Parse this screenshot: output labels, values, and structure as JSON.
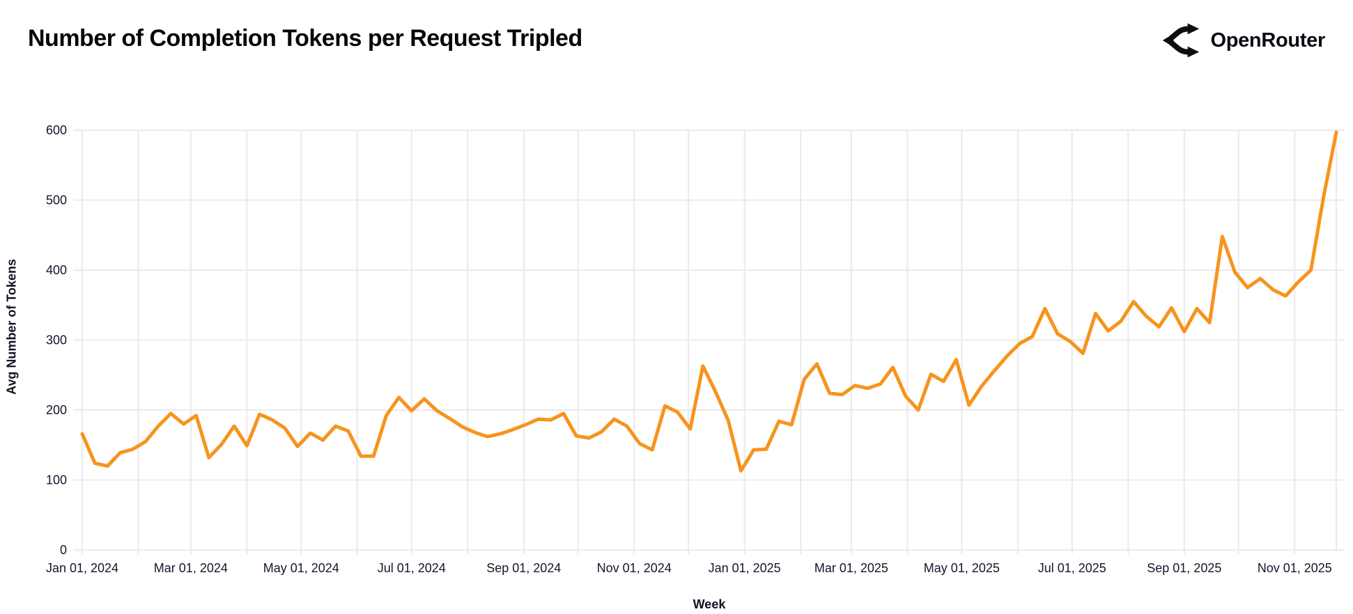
{
  "header": {
    "title": "Number of Completion Tokens per Request Tripled",
    "brand_name": "OpenRouter"
  },
  "icons": {
    "logo": "openrouter-branching-arrows"
  },
  "colors": {
    "line": "#F7941D",
    "grid": "#E9E9F0",
    "tick_text": "#15152B",
    "title_text": "#060608"
  },
  "chart_data": {
    "type": "line",
    "title": "Number of Completion Tokens per Request Tripled",
    "xlabel": "Week",
    "ylabel": "Avg Number of Tokens",
    "ylim": [
      0,
      600
    ],
    "yticks": [
      0,
      100,
      200,
      300,
      400,
      500,
      600
    ],
    "x_tick_labels": [
      "Jan 01, 2024",
      "Mar 01, 2024",
      "May 01, 2024",
      "Jul 01, 2024",
      "Sep 01, 2024",
      "Nov 01, 2024",
      "Jan 01, 2025",
      "Mar 01, 2025",
      "May 01, 2025",
      "Jul 01, 2025",
      "Sep 01, 2025",
      "Nov 01, 2025"
    ],
    "grid": true,
    "legend": "none",
    "line_color": "#F7941D",
    "series": [
      {
        "name": "Avg Number of Tokens",
        "x_start_date": "2024-01-01",
        "x_step_days": 7,
        "values": [
          166,
          124,
          120,
          139,
          144,
          155,
          177,
          195,
          180,
          192,
          132,
          151,
          177,
          149,
          194,
          186,
          174,
          148,
          167,
          157,
          177,
          170,
          134,
          134,
          192,
          218,
          199,
          216,
          199,
          188,
          176,
          168,
          162,
          166,
          172,
          179,
          187,
          186,
          195,
          163,
          160,
          169,
          187,
          177,
          152,
          143,
          206,
          197,
          173,
          263,
          226,
          185,
          113,
          143,
          144,
          184,
          179,
          244,
          266,
          224,
          222,
          235,
          231,
          237,
          261,
          220,
          200,
          251,
          241,
          272,
          207,
          234,
          256,
          277,
          295,
          305,
          345,
          309,
          298,
          281,
          338,
          313,
          327,
          355,
          334,
          319,
          346,
          312,
          345,
          325,
          448,
          397,
          375,
          388,
          372,
          363,
          383,
          400,
          505,
          597
        ]
      }
    ]
  }
}
